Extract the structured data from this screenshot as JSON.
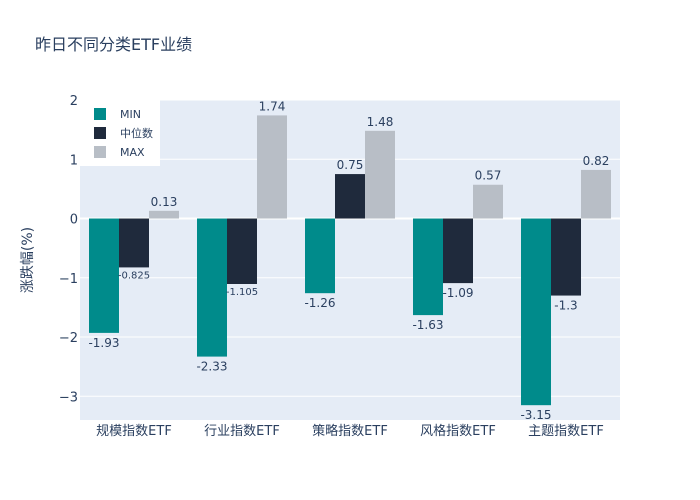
{
  "chart_data": {
    "type": "bar",
    "title": "昨日不同分类ETF业绩",
    "xlabel": "",
    "ylabel": "涨跌幅(%)",
    "ylim": [
      -3.4,
      2.0
    ],
    "yticks": [
      -3,
      -2,
      -1,
      0,
      1,
      2
    ],
    "ytick_labels": [
      "−3",
      "−2",
      "−1",
      "0",
      "1",
      "2"
    ],
    "grid": true,
    "legend_position": "top-left",
    "categories": [
      "规模指数ETF",
      "行业指数ETF",
      "策略指数ETF",
      "风格指数ETF",
      "主题指数ETF"
    ],
    "series": [
      {
        "name": "MIN",
        "color": "#008b8b",
        "values": [
          -1.93,
          -2.33,
          -1.26,
          -1.63,
          -3.15
        ],
        "labels": [
          "-1.93",
          "-2.33",
          "-1.26",
          "-1.63",
          "-3.15"
        ]
      },
      {
        "name": "中位数",
        "color": "#1f2a3c",
        "values": [
          -0.825,
          -1.105,
          0.75,
          -1.09,
          -1.3
        ],
        "labels": [
          "-0.825",
          "-1.105",
          "0.75",
          "-1.09",
          "-1.3"
        ]
      },
      {
        "name": "MAX",
        "color": "#b8bec6",
        "values": [
          0.13,
          1.74,
          1.48,
          0.57,
          0.82
        ],
        "labels": [
          "0.13",
          "1.74",
          "1.48",
          "0.57",
          "0.82"
        ]
      }
    ]
  }
}
